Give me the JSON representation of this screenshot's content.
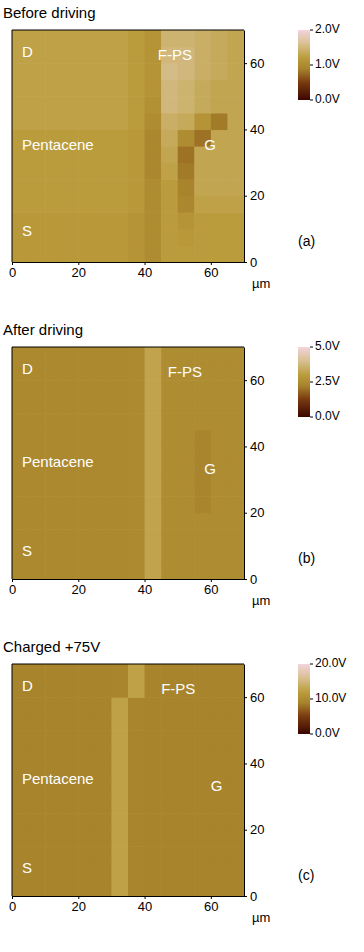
{
  "chart_data": [
    {
      "type": "heatmap",
      "title": "Before driving",
      "panel_label": "(a)",
      "xlim": [
        0,
        70
      ],
      "ylim": [
        0,
        70
      ],
      "xticks": [
        0,
        20,
        40,
        60
      ],
      "yticks": [
        0,
        20,
        40,
        60
      ],
      "xlabel": "µm",
      "x": [
        2.5,
        7.5,
        12.5,
        17.5,
        22.5,
        27.5,
        32.5,
        37.5,
        42.5,
        47.5,
        52.5,
        57.5,
        62.5,
        67.5
      ],
      "y": [
        2.5,
        7.5,
        12.5,
        17.5,
        22.5,
        27.5,
        32.5,
        37.5,
        42.5,
        47.5,
        52.5,
        57.5,
        62.5,
        67.5
      ],
      "values": [
        [
          1.15,
          1.15,
          1.15,
          1.15,
          1.15,
          1.15,
          1.15,
          1.1,
          1.0,
          1.2,
          1.2,
          1.2,
          1.2,
          1.2
        ],
        [
          1.15,
          1.15,
          1.15,
          1.15,
          1.15,
          1.15,
          1.15,
          1.1,
          1.0,
          1.2,
          1.15,
          1.2,
          1.2,
          1.2
        ],
        [
          1.15,
          1.15,
          1.15,
          1.15,
          1.15,
          1.15,
          1.15,
          1.1,
          1.0,
          1.2,
          1.1,
          1.2,
          1.2,
          1.2
        ],
        [
          1.2,
          1.2,
          1.2,
          1.2,
          1.2,
          1.2,
          1.2,
          1.15,
          1.0,
          1.2,
          0.95,
          1.25,
          1.25,
          1.25
        ],
        [
          1.2,
          1.2,
          1.2,
          1.2,
          1.2,
          1.2,
          1.2,
          1.15,
          1.0,
          1.2,
          0.9,
          1.3,
          1.3,
          1.3
        ],
        [
          1.2,
          1.2,
          1.2,
          1.2,
          1.2,
          1.2,
          1.2,
          1.15,
          0.95,
          1.25,
          0.85,
          1.3,
          1.3,
          1.3
        ],
        [
          1.2,
          1.2,
          1.2,
          1.2,
          1.2,
          1.2,
          1.2,
          1.15,
          0.95,
          1.3,
          0.8,
          1.3,
          1.3,
          1.3
        ],
        [
          1.2,
          1.2,
          1.2,
          1.2,
          1.2,
          1.2,
          1.2,
          1.15,
          0.95,
          1.35,
          1.0,
          0.8,
          1.3,
          1.3
        ],
        [
          1.25,
          1.25,
          1.25,
          1.25,
          1.25,
          1.25,
          1.25,
          1.2,
          1.0,
          1.4,
          1.35,
          1.1,
          0.85,
          1.3
        ],
        [
          1.25,
          1.25,
          1.25,
          1.25,
          1.25,
          1.25,
          1.25,
          1.2,
          1.05,
          1.5,
          1.45,
          1.35,
          1.3,
          1.3
        ],
        [
          1.25,
          1.25,
          1.25,
          1.25,
          1.25,
          1.25,
          1.25,
          1.2,
          1.1,
          1.5,
          1.45,
          1.35,
          1.3,
          1.3
        ],
        [
          1.25,
          1.25,
          1.25,
          1.25,
          1.25,
          1.25,
          1.25,
          1.2,
          1.1,
          1.55,
          1.5,
          1.4,
          1.35,
          1.3
        ],
        [
          1.25,
          1.25,
          1.25,
          1.25,
          1.25,
          1.25,
          1.25,
          1.2,
          1.1,
          1.5,
          1.5,
          1.4,
          1.35,
          1.3
        ],
        [
          1.25,
          1.25,
          1.25,
          1.25,
          1.25,
          1.25,
          1.25,
          1.2,
          1.1,
          1.45,
          1.45,
          1.4,
          1.35,
          1.3
        ]
      ],
      "colorbar": {
        "range": [
          0,
          2
        ],
        "ticks": [
          {
            "value": 0,
            "label": "0.0V"
          },
          {
            "value": 1,
            "label": "1.0V"
          },
          {
            "value": 2,
            "label": "2.0V"
          }
        ]
      },
      "annotations": [
        {
          "text": "D",
          "x": 3,
          "y": 63
        },
        {
          "text": "F-PS",
          "x": 44,
          "y": 62
        },
        {
          "text": "Pentacene",
          "x": 3,
          "y": 35
        },
        {
          "text": "G",
          "x": 58,
          "y": 35
        },
        {
          "text": "S",
          "x": 3,
          "y": 9
        }
      ]
    },
    {
      "type": "heatmap",
      "title": "After driving",
      "panel_label": "(b)",
      "xlim": [
        0,
        70
      ],
      "ylim": [
        0,
        70
      ],
      "xticks": [
        0,
        20,
        40,
        60
      ],
      "yticks": [
        0,
        20,
        40,
        60
      ],
      "xlabel": "µm",
      "x": [
        2.5,
        7.5,
        12.5,
        17.5,
        22.5,
        27.5,
        32.5,
        37.5,
        42.5,
        47.5,
        52.5,
        57.5,
        62.5,
        67.5
      ],
      "y": [
        2.5,
        7.5,
        12.5,
        17.5,
        22.5,
        27.5,
        32.5,
        37.5,
        42.5,
        47.5,
        52.5,
        57.5,
        62.5,
        67.5
      ],
      "values": [
        [
          2.4,
          2.4,
          2.4,
          2.4,
          2.4,
          2.4,
          2.4,
          2.45,
          3.2,
          2.5,
          2.5,
          2.5,
          2.5,
          2.5
        ],
        [
          2.4,
          2.4,
          2.4,
          2.4,
          2.4,
          2.4,
          2.4,
          2.45,
          3.2,
          2.5,
          2.5,
          2.5,
          2.5,
          2.5
        ],
        [
          2.4,
          2.4,
          2.4,
          2.4,
          2.4,
          2.4,
          2.4,
          2.45,
          3.2,
          2.5,
          2.5,
          2.5,
          2.5,
          2.5
        ],
        [
          2.4,
          2.4,
          2.4,
          2.4,
          2.4,
          2.4,
          2.4,
          2.45,
          3.2,
          2.5,
          2.5,
          2.5,
          2.5,
          2.5
        ],
        [
          2.4,
          2.4,
          2.4,
          2.4,
          2.4,
          2.4,
          2.4,
          2.45,
          3.2,
          2.5,
          2.5,
          2.3,
          2.5,
          2.5
        ],
        [
          2.4,
          2.4,
          2.4,
          2.4,
          2.4,
          2.4,
          2.4,
          2.45,
          3.2,
          2.5,
          2.5,
          2.3,
          2.5,
          2.5
        ],
        [
          2.4,
          2.4,
          2.4,
          2.4,
          2.4,
          2.4,
          2.4,
          2.45,
          3.2,
          2.5,
          2.5,
          2.3,
          2.5,
          2.5
        ],
        [
          2.4,
          2.4,
          2.4,
          2.4,
          2.4,
          2.4,
          2.4,
          2.45,
          3.2,
          2.5,
          2.5,
          2.3,
          2.5,
          2.5
        ],
        [
          2.4,
          2.4,
          2.4,
          2.4,
          2.4,
          2.4,
          2.4,
          2.45,
          3.2,
          2.5,
          2.5,
          2.3,
          2.5,
          2.5
        ],
        [
          2.4,
          2.4,
          2.4,
          2.4,
          2.4,
          2.4,
          2.4,
          2.45,
          3.2,
          2.5,
          2.5,
          2.5,
          2.5,
          2.5
        ],
        [
          2.4,
          2.4,
          2.4,
          2.4,
          2.4,
          2.4,
          2.4,
          2.45,
          3.2,
          2.5,
          2.5,
          2.5,
          2.5,
          2.5
        ],
        [
          2.4,
          2.4,
          2.4,
          2.4,
          2.4,
          2.4,
          2.4,
          2.45,
          3.2,
          2.5,
          2.5,
          2.5,
          2.5,
          2.5
        ],
        [
          2.4,
          2.4,
          2.4,
          2.4,
          2.4,
          2.4,
          2.4,
          2.45,
          3.2,
          2.5,
          2.5,
          2.5,
          2.5,
          2.5
        ],
        [
          2.4,
          2.4,
          2.4,
          2.4,
          2.4,
          2.4,
          2.4,
          2.45,
          3.2,
          2.5,
          2.5,
          2.5,
          2.5,
          2.5
        ]
      ],
      "colorbar": {
        "range": [
          0,
          5
        ],
        "ticks": [
          {
            "value": 0,
            "label": "0.0V"
          },
          {
            "value": 2.5,
            "label": "2.5V"
          },
          {
            "value": 5,
            "label": "5.0V"
          }
        ]
      },
      "annotations": [
        {
          "text": "D",
          "x": 3,
          "y": 63
        },
        {
          "text": "F-PS",
          "x": 47,
          "y": 62
        },
        {
          "text": "Pentacene",
          "x": 3,
          "y": 35
        },
        {
          "text": "G",
          "x": 58,
          "y": 33
        },
        {
          "text": "S",
          "x": 3,
          "y": 8
        }
      ]
    },
    {
      "type": "heatmap",
      "title": "Charged +75V",
      "panel_label": "(c)",
      "xlim": [
        0,
        70
      ],
      "ylim": [
        0,
        70
      ],
      "xticks": [
        0,
        20,
        40,
        60
      ],
      "yticks": [
        0,
        20,
        40,
        60
      ],
      "xlabel": "µm",
      "x": [
        2.5,
        7.5,
        12.5,
        17.5,
        22.5,
        27.5,
        32.5,
        37.5,
        42.5,
        47.5,
        52.5,
        57.5,
        62.5,
        67.5
      ],
      "y": [
        2.5,
        7.5,
        12.5,
        17.5,
        22.5,
        27.5,
        32.5,
        37.5,
        42.5,
        47.5,
        52.5,
        57.5,
        62.5,
        67.5
      ],
      "values": [
        [
          9,
          9,
          9,
          9,
          9,
          9,
          12.5,
          9.2,
          9,
          9,
          9,
          9,
          9,
          9
        ],
        [
          9,
          9,
          9,
          9,
          9,
          9,
          12.5,
          9.2,
          9,
          9,
          9,
          9,
          9,
          9
        ],
        [
          9,
          9,
          9,
          9,
          9,
          9,
          12.5,
          9.2,
          9,
          9,
          9,
          9,
          9,
          9
        ],
        [
          9,
          9,
          9,
          9,
          9,
          9,
          12.5,
          9.2,
          9,
          9,
          9,
          9,
          9,
          9
        ],
        [
          9,
          9,
          9,
          9,
          9,
          9,
          12.5,
          9.2,
          9,
          9,
          9,
          9,
          9,
          9
        ],
        [
          9,
          9,
          9,
          9,
          9,
          9,
          12.5,
          9.2,
          9,
          9,
          9,
          9,
          9,
          9
        ],
        [
          9,
          9,
          9,
          9,
          9,
          9,
          12.5,
          9.2,
          9,
          9,
          9,
          9,
          9,
          9
        ],
        [
          9,
          9,
          9,
          9,
          9,
          9,
          12.5,
          9.2,
          9,
          9,
          9,
          9,
          9,
          9
        ],
        [
          9,
          9,
          9,
          9,
          9,
          9,
          12.5,
          9.2,
          9,
          9,
          9,
          9,
          9,
          9
        ],
        [
          9,
          9,
          9,
          9,
          9,
          9,
          12.5,
          9.2,
          9,
          9,
          9,
          9,
          9,
          9
        ],
        [
          9,
          9,
          9,
          9,
          9,
          9,
          12.5,
          9.2,
          9,
          9,
          9,
          9,
          9,
          9
        ],
        [
          9,
          9,
          9,
          9,
          9,
          9,
          12.5,
          9.2,
          9,
          9,
          9,
          9,
          9,
          9
        ],
        [
          9,
          9,
          9,
          9,
          9,
          9,
          9.2,
          12.5,
          9,
          9,
          9,
          9,
          9,
          9
        ],
        [
          9,
          9,
          9,
          9,
          9,
          9,
          9.2,
          12.5,
          9,
          9,
          9,
          9,
          9,
          9
        ]
      ],
      "colorbar": {
        "range": [
          0,
          20
        ],
        "ticks": [
          {
            "value": 0,
            "label": "0.0V"
          },
          {
            "value": 10,
            "label": "10.0V"
          },
          {
            "value": 20,
            "label": "20.0V"
          }
        ]
      },
      "annotations": [
        {
          "text": "D",
          "x": 3,
          "y": 63
        },
        {
          "text": "F-PS",
          "x": 45,
          "y": 62
        },
        {
          "text": "Pentacene",
          "x": 3,
          "y": 35
        },
        {
          "text": "G",
          "x": 60,
          "y": 33
        },
        {
          "text": "S",
          "x": 3,
          "y": 8
        }
      ]
    }
  ]
}
